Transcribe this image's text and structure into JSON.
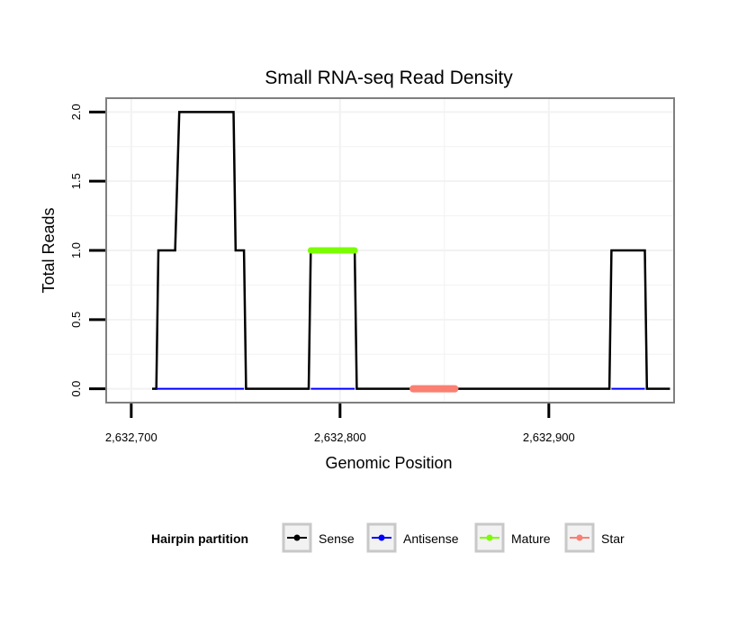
{
  "chart_data": {
    "type": "line",
    "title": "Small RNA-seq Read Density",
    "xlabel": "Genomic Position",
    "ylabel": "Total Reads",
    "xlim": [
      2632688,
      2632960
    ],
    "ylim": [
      -0.1,
      2.1
    ],
    "x_ticks": [
      2632700,
      2632800,
      2632900
    ],
    "x_tick_labels": [
      "2,632,700",
      "2,632,800",
      "2,632,900"
    ],
    "y_ticks": [
      0,
      0.5,
      1,
      1.5,
      2
    ],
    "y_tick_labels": [
      "0.0",
      "0.5",
      "1.0",
      "1.5",
      "2.0"
    ],
    "grid": true,
    "legend": {
      "title": "Hairpin partition",
      "position": "bottom",
      "entries": [
        {
          "name": "Sense",
          "color": "#000000"
        },
        {
          "name": "Antisense",
          "color": "#0000ff"
        },
        {
          "name": "Mature",
          "color": "#7cfc00"
        },
        {
          "name": "Star",
          "color": "#fa8072"
        }
      ]
    },
    "series": [
      {
        "name": "Sense",
        "color": "#000000",
        "x": [
          2632710,
          2632712,
          2632713,
          2632721,
          2632723,
          2632749,
          2632750,
          2632754,
          2632755,
          2632785,
          2632786,
          2632807,
          2632808,
          2632929,
          2632930,
          2632946,
          2632947,
          2632958
        ],
        "y": [
          0,
          0,
          1,
          1,
          2,
          2,
          1,
          1,
          0,
          0,
          1,
          1,
          0,
          0,
          1,
          1,
          0,
          0
        ]
      },
      {
        "name": "Antisense",
        "color": "#0000ff",
        "segments": [
          [
            2632712,
            2632754
          ],
          [
            2632786,
            2632807
          ],
          [
            2632930,
            2632946
          ]
        ],
        "y": 0
      },
      {
        "name": "Mature",
        "color": "#7cfc00",
        "x": [
          2632786,
          2632807
        ],
        "y": [
          1,
          1
        ]
      },
      {
        "name": "Star",
        "color": "#fa8072",
        "x": [
          2632835,
          2632855
        ],
        "y": [
          0,
          0
        ]
      }
    ]
  }
}
